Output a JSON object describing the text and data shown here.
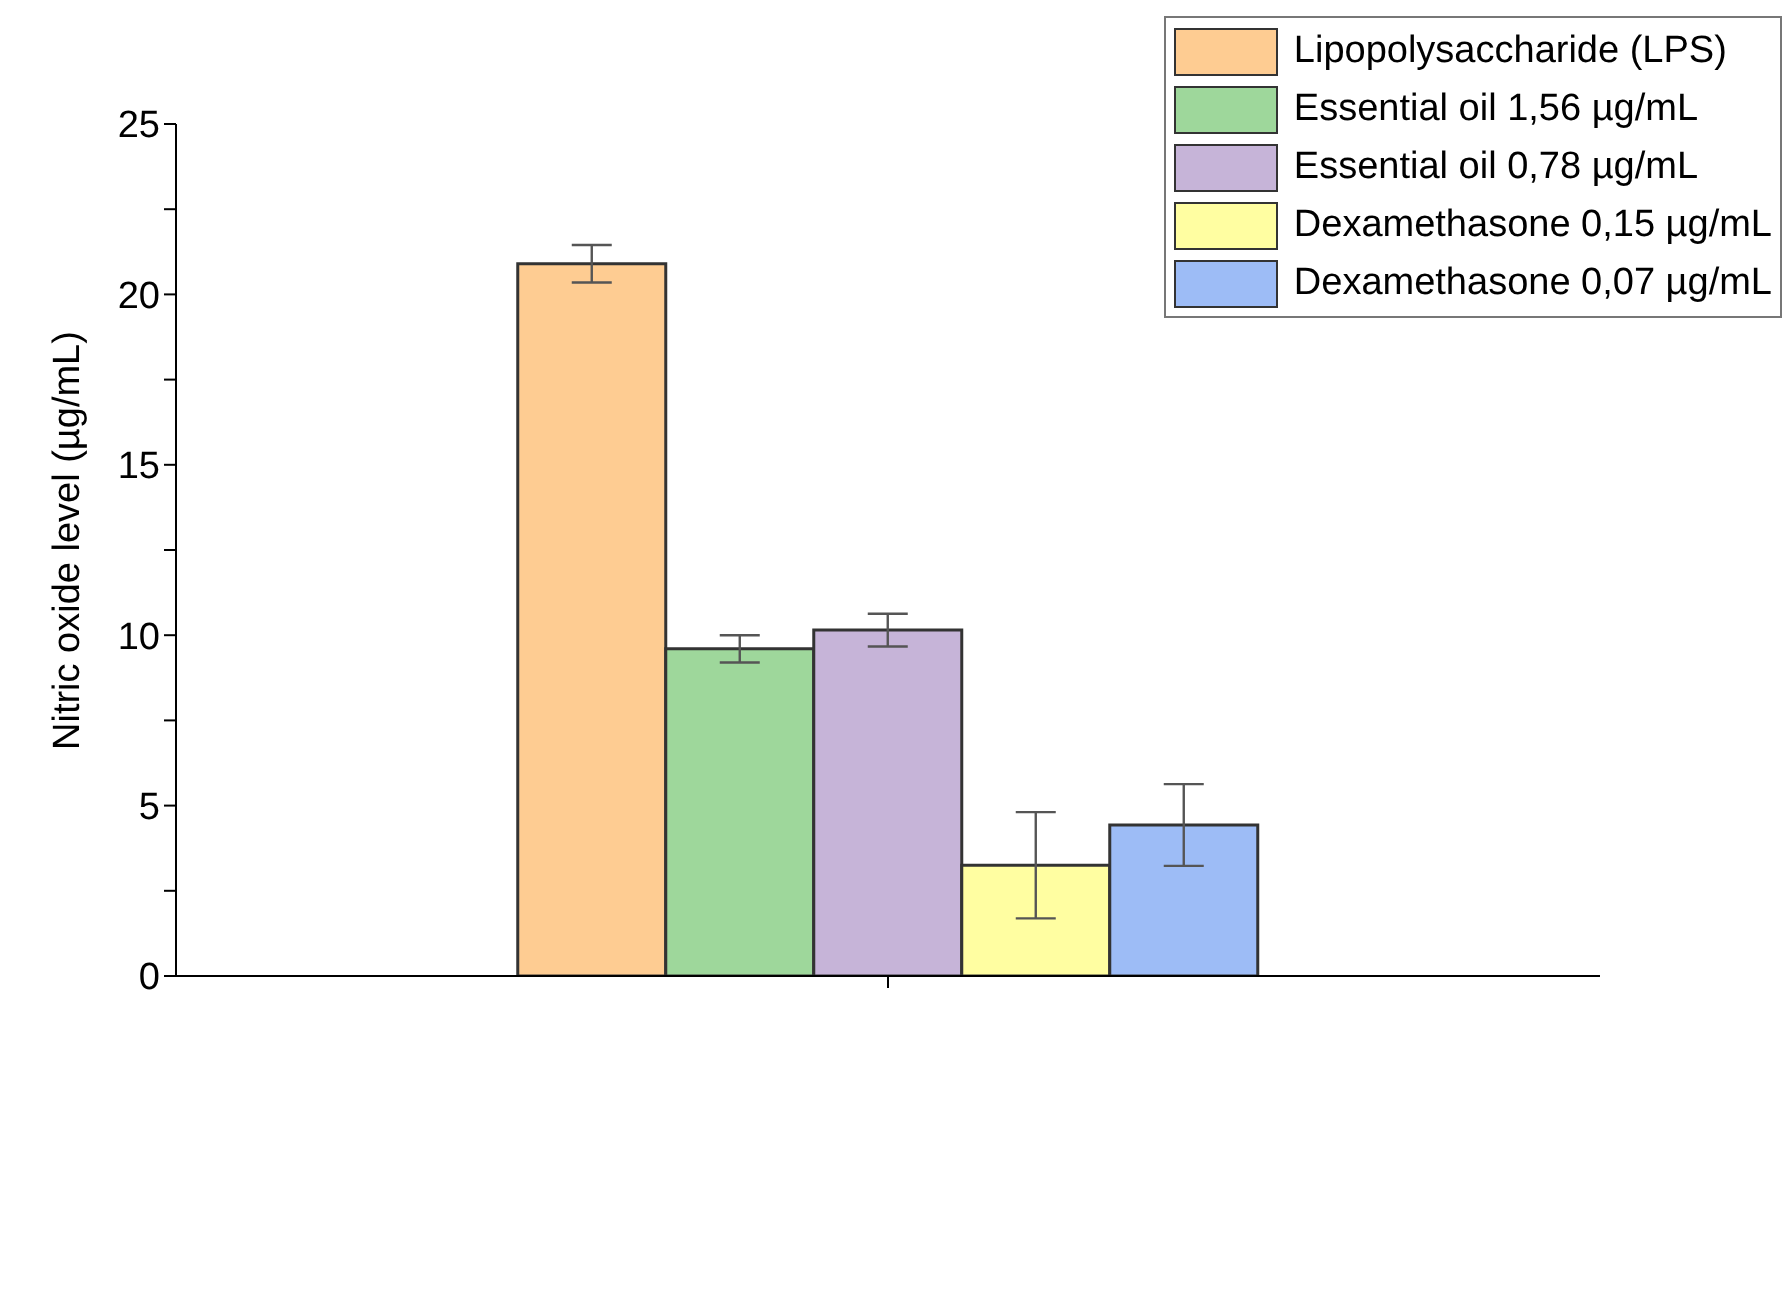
{
  "chart_data": {
    "type": "bar",
    "ylabel": "Nitric oxide level (µg/mL)",
    "categories": [
      null
    ],
    "series": [
      {
        "name": "Lipopolysaccharide (LPS)",
        "color": "#fecc92",
        "values": [
          20.9
        ],
        "errors": [
          0.55
        ]
      },
      {
        "name": "Essential oil 1,56 µg/mL",
        "color": "#9ed79b",
        "values": [
          9.6
        ],
        "errors": [
          0.4
        ]
      },
      {
        "name": "Essential oil 0,78 µg/mL",
        "color": "#c6b4d8",
        "values": [
          10.15
        ],
        "errors": [
          0.48
        ]
      },
      {
        "name": "Dexamethasone 0,15 µg/mL",
        "color": "#fffea1",
        "values": [
          3.25
        ],
        "errors": [
          1.56
        ]
      },
      {
        "name": "Dexamethasone 0,07 µg/mL",
        "color": "#9dbcf6",
        "values": [
          4.43
        ],
        "errors": [
          1.2
        ]
      }
    ],
    "ylim": [
      0,
      25
    ],
    "yticks": [
      0,
      {
        "value": 2.5,
        "label": null
      },
      5,
      {
        "value": 7.5,
        "label": null
      },
      10,
      {
        "value": 12.5,
        "label": null
      },
      15,
      {
        "value": 17.5,
        "label": null
      },
      20,
      {
        "value": 22.5,
        "label": null
      },
      25
    ],
    "grid": false,
    "legend": "top right"
  }
}
